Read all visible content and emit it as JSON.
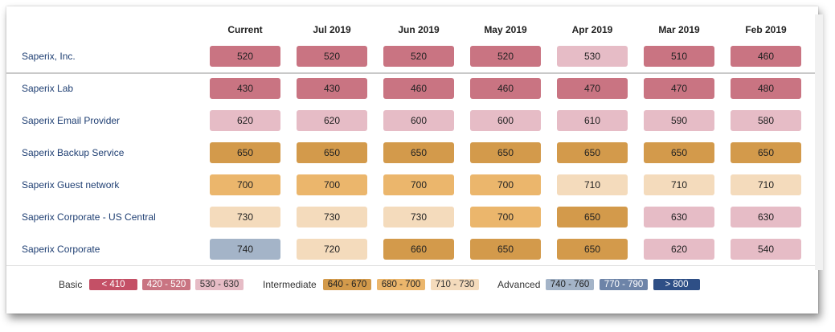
{
  "columns": [
    "Current",
    "Jul 2019",
    "Jun 2019",
    "May 2019",
    "Apr 2019",
    "Mar 2019",
    "Feb 2019"
  ],
  "rows": [
    {
      "name": "Saperix, Inc.",
      "values": [
        "520",
        "520",
        "520",
        "520",
        "530",
        "510",
        "460"
      ],
      "tiers": [
        "basic2",
        "basic2",
        "basic2",
        "basic2",
        "basic3",
        "basic2",
        "basic2"
      ]
    },
    {
      "name": "Saperix Lab",
      "values": [
        "430",
        "430",
        "460",
        "460",
        "470",
        "470",
        "480"
      ],
      "tiers": [
        "basic2",
        "basic2",
        "basic2",
        "basic2",
        "basic2",
        "basic2",
        "basic2"
      ]
    },
    {
      "name": "Saperix Email Provider",
      "values": [
        "620",
        "620",
        "600",
        "600",
        "610",
        "590",
        "580"
      ],
      "tiers": [
        "basic3",
        "basic3",
        "basic3",
        "basic3",
        "basic3",
        "basic3",
        "basic3"
      ]
    },
    {
      "name": "Saperix Backup Service",
      "values": [
        "650",
        "650",
        "650",
        "650",
        "650",
        "650",
        "650"
      ],
      "tiers": [
        "int1",
        "int1",
        "int1",
        "int1",
        "int1",
        "int1",
        "int1"
      ]
    },
    {
      "name": "Saperix Guest network",
      "values": [
        "700",
        "700",
        "700",
        "700",
        "710",
        "710",
        "710"
      ],
      "tiers": [
        "int2",
        "int2",
        "int2",
        "int2",
        "int3",
        "int3",
        "int3"
      ]
    },
    {
      "name": "Saperix Corporate - US Central",
      "values": [
        "730",
        "730",
        "730",
        "700",
        "650",
        "630",
        "630"
      ],
      "tiers": [
        "int3",
        "int3",
        "int3",
        "int2",
        "int1",
        "basic3",
        "basic3"
      ]
    },
    {
      "name": "Saperix Corporate",
      "values": [
        "740",
        "720",
        "660",
        "650",
        "650",
        "620",
        "540"
      ],
      "tiers": [
        "adv1",
        "int3",
        "int1",
        "int1",
        "int1",
        "basic3",
        "basic3"
      ]
    }
  ],
  "tier_colors": {
    "basic1": "#c45066",
    "basic2": "#c97482",
    "basic3": "#e6bcc6",
    "int1": "#d39a4b",
    "int2": "#ebb66c",
    "int3": "#f4dbbc",
    "adv1": "#a4b4c8",
    "adv2": "#6d84a8",
    "adv3": "#2e4f86"
  },
  "legend": {
    "basic_label": "Basic",
    "basic_ranges": [
      "< 410",
      "420 - 520",
      "530 - 630"
    ],
    "intermediate_label": "Intermediate",
    "intermediate_ranges": [
      "640 - 670",
      "680 - 700",
      "710 - 730"
    ],
    "advanced_label": "Advanced",
    "advanced_ranges": [
      "740 - 760",
      "770 - 790",
      "> 800"
    ]
  }
}
